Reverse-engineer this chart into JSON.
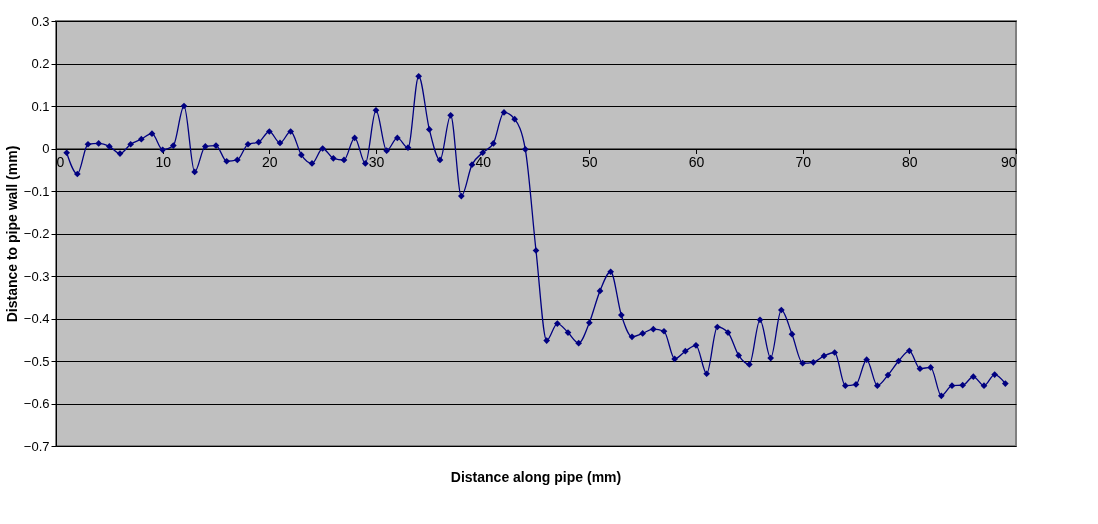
{
  "chart_data": {
    "type": "line",
    "xlabel": "Distance along pipe (mm)",
    "ylabel": "Distance to pipe wall (mm)",
    "x": [
      1,
      2,
      3,
      4,
      5,
      6,
      7,
      8,
      9,
      10,
      11,
      12,
      13,
      14,
      15,
      16,
      17,
      18,
      19,
      20,
      21,
      22,
      23,
      24,
      25,
      26,
      27,
      28,
      29,
      30,
      31,
      32,
      33,
      34,
      35,
      36,
      37,
      38,
      39,
      40,
      41,
      42,
      43,
      44,
      45,
      46,
      47,
      48,
      49,
      50,
      51,
      52,
      53,
      54,
      55,
      56,
      57,
      58,
      59,
      60,
      61,
      62,
      63,
      64,
      65,
      66,
      67,
      68,
      69,
      70,
      71,
      72,
      73,
      74,
      75,
      76,
      77,
      78,
      79,
      80,
      81,
      82,
      83,
      84,
      85,
      86,
      87,
      88,
      89
    ],
    "series": [
      {
        "color": "#000080",
        "values": [
          -0.01,
          -0.06,
          0.01,
          0.012,
          0.005,
          -0.012,
          0.01,
          0.022,
          0.035,
          -0.003,
          0.007,
          0.1,
          -0.055,
          0.005,
          0.007,
          -0.03,
          -0.027,
          0.01,
          0.015,
          0.04,
          0.013,
          0.04,
          -0.015,
          -0.035,
          0.0,
          -0.023,
          -0.027,
          0.025,
          -0.035,
          0.09,
          -0.005,
          0.025,
          0.002,
          0.17,
          0.045,
          -0.027,
          0.078,
          -0.112,
          -0.038,
          -0.01,
          0.012,
          0.085,
          0.069,
          -0.002,
          -0.24,
          -0.452,
          -0.412,
          -0.433,
          -0.458,
          -0.41,
          -0.335,
          -0.29,
          -0.392,
          -0.443,
          -0.435,
          -0.425,
          -0.43,
          -0.495,
          -0.477,
          -0.463,
          -0.53,
          -0.42,
          -0.433,
          -0.487,
          -0.508,
          -0.403,
          -0.493,
          -0.38,
          -0.437,
          -0.505,
          -0.503,
          -0.488,
          -0.48,
          -0.558,
          -0.555,
          -0.497,
          -0.558,
          -0.533,
          -0.5,
          -0.476,
          -0.518,
          -0.515,
          -0.582,
          -0.558,
          -0.557,
          -0.537,
          -0.558,
          -0.532,
          -0.553
        ]
      }
    ],
    "xlim": [
      0,
      90
    ],
    "xticks": [
      0,
      10,
      20,
      30,
      40,
      50,
      60,
      70,
      80,
      90
    ],
    "ylim": [
      -0.7,
      0.3
    ],
    "yticks": [
      -0.7,
      -0.6,
      -0.5,
      -0.4,
      -0.3,
      -0.2,
      -0.1,
      0,
      0.1,
      0.2,
      0.3
    ],
    "grid": "y",
    "marker": "diamond",
    "line_style": "solid"
  }
}
